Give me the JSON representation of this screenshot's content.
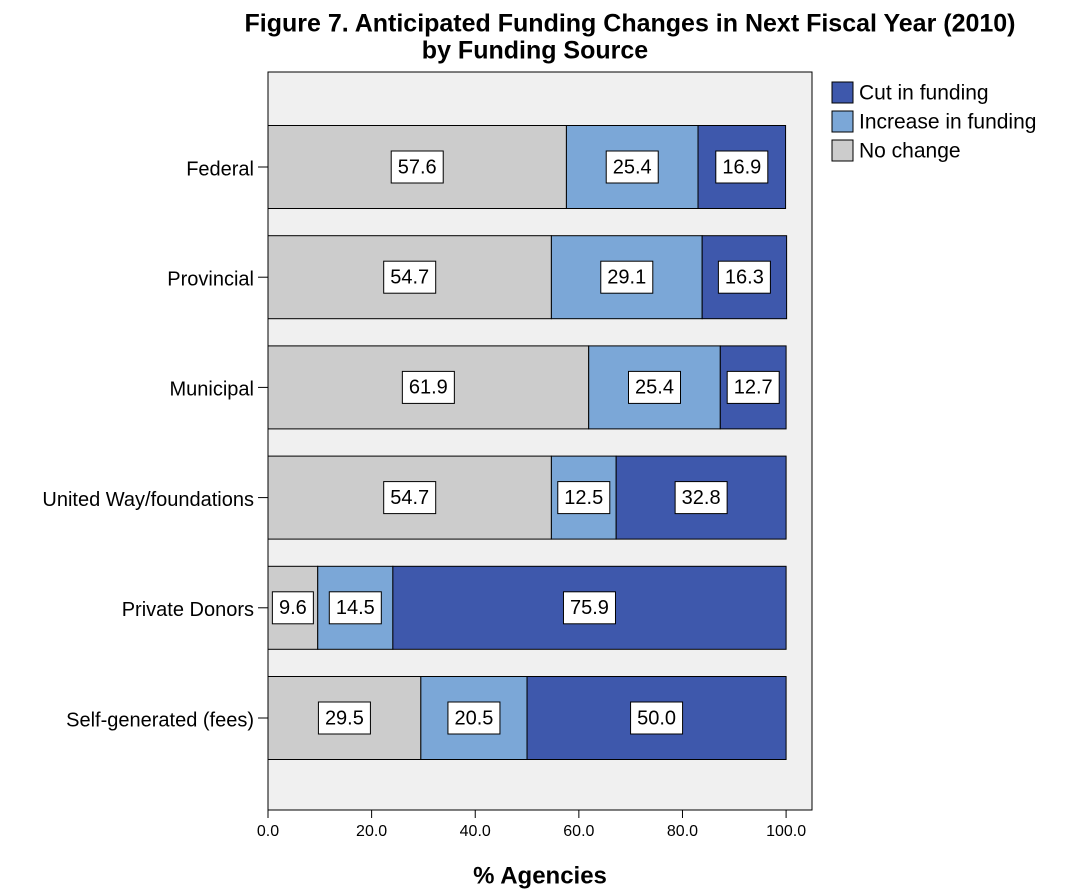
{
  "chart_data": {
    "type": "stacked-bar-horizontal",
    "title": [
      "Figure 7. Anticipated Funding Changes in Next Fiscal Year (2010)",
      "by Funding Source"
    ],
    "xlabel": "% Agencies",
    "categories": [
      "Federal",
      "Provincial",
      "Municipal",
      "United Way/foundations",
      "Private Donors",
      "Self-generated (fees)"
    ],
    "series": [
      {
        "name": "No change",
        "color": "#cccccc",
        "values": [
          57.6,
          54.7,
          61.9,
          54.7,
          9.6,
          29.5
        ],
        "value_labels": [
          "57.6",
          "54.7",
          "61.9",
          "54.7",
          "9.6",
          "29.5"
        ]
      },
      {
        "name": "Increase in funding",
        "color": "#7ba7d7",
        "values": [
          25.4,
          29.1,
          25.4,
          12.5,
          14.5,
          20.5
        ],
        "value_labels": [
          "25.4",
          "29.1",
          "25.4",
          "12.5",
          "14.5",
          "20.5"
        ]
      },
      {
        "name": "Cut in funding",
        "color": "#3e58ac",
        "values": [
          16.9,
          16.3,
          12.7,
          32.8,
          75.9,
          50.0
        ],
        "value_labels": [
          "16.9",
          "16.3",
          "12.7",
          "32.8",
          "75.9",
          "50.0"
        ]
      }
    ],
    "xlim": [
      0,
      105
    ],
    "xticks": [
      {
        "value": 0,
        "label": "0.0"
      },
      {
        "value": 20,
        "label": "20.0"
      },
      {
        "value": 40,
        "label": "40.0"
      },
      {
        "value": 60,
        "label": "60.0"
      },
      {
        "value": 80,
        "label": "80.0"
      },
      {
        "value": 100,
        "label": "100.0"
      }
    ],
    "legend": "outside-top-right"
  }
}
